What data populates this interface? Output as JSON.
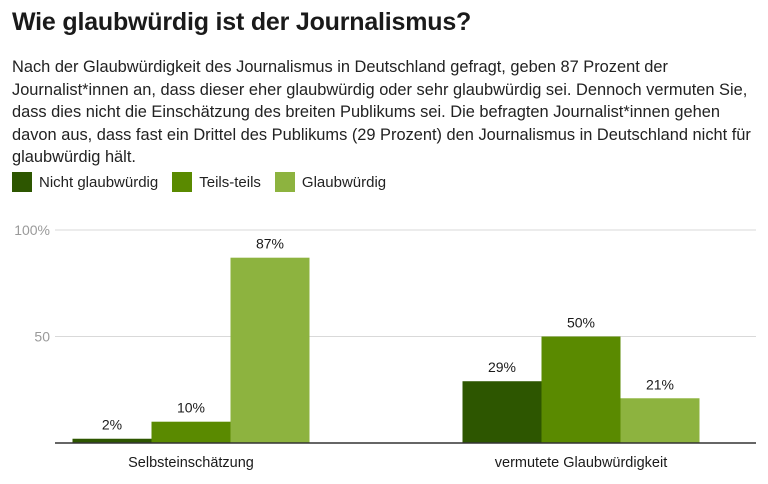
{
  "title": "Wie glaubwürdig ist der Journalismus?",
  "subtitle": "Nach der Glaubwürdigkeit des Journalismus in Deutschland gefragt, geben 87 Prozent der Journalist*innen an, dass dieser eher glaubwürdig oder sehr glaubwürdig sei. Dennoch vermuten Sie, dass dies nicht die Einschätzung des breiten Publikums sei. Die befragten Journalist*innen gehen davon aus, dass fast ein Drittel des Publikums (29 Prozent) den Journalismus in Deutschland nicht für glaubwürdig hält.",
  "chart_data": {
    "type": "bar",
    "categories": [
      "Selbsteinschätzung",
      "vermutete Glaubwürdigkeit"
    ],
    "series": [
      {
        "name": "Nicht glaubwürdig",
        "values": [
          2,
          29
        ],
        "labels": [
          "2%",
          "29%"
        ],
        "color": "#2d5600"
      },
      {
        "name": "Teils-teils",
        "values": [
          10,
          50
        ],
        "labels": [
          "10%",
          "50%"
        ],
        "color": "#5a8a00"
      },
      {
        "name": "Glaubwürdig",
        "values": [
          87,
          21
        ],
        "labels": [
          "87%",
          "21%"
        ],
        "color": "#8db33f"
      }
    ],
    "yticks": [
      {
        "value": 0,
        "label": ""
      },
      {
        "value": 50,
        "label": "50"
      },
      {
        "value": 100,
        "label": "100%"
      }
    ],
    "ylim": [
      0,
      100
    ],
    "grid": true,
    "legend_position": "top-left"
  }
}
